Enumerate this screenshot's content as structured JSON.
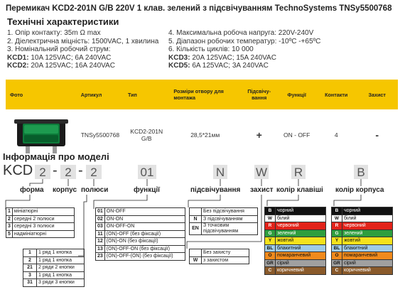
{
  "title": "Перемикач KCD2-201N G/B 220V 1 клав. зелений з підсвічуванням TechnoSystems TNSy5500768",
  "specs": {
    "heading": "Технічні характеристики",
    "left": [
      "1. Опір контакту: 35m Ω  max",
      "2. Діелектрична міцність:  1500VAC, 1 хвилина",
      "3. Номінальний робочий струм:"
    ],
    "left_ratings": [
      {
        "name": "KCD1:",
        "value": " 10A 125VAC; 6A 240VAC"
      },
      {
        "name": "KCD2:",
        "value": " 20A 125VAC; 16A 240VAC"
      }
    ],
    "right": [
      "4. Максимальна робоча напруга: 220V-240V",
      "5. Діапазон робочих температур: -10ºC -+65ºC",
      "6. Кількість циклів: 10 000"
    ],
    "right_ratings": [
      {
        "name": "KCD3:",
        "value": " 20A 125VAC; 15A 240VAC"
      },
      {
        "name": "KCD5:",
        "value": " 6A 125VAC; 3A 240VAC"
      }
    ]
  },
  "product_table": {
    "headers": [
      "Фото",
      "Артикул",
      "Тип",
      "Розміри отвору для монтажа",
      "Підсвічу-вання",
      "Функції",
      "Контакти",
      "Захист"
    ],
    "row": {
      "article": "TNSy5500768",
      "type_line1": "KCD2-201N",
      "type_line2": "G/B",
      "size": "28,5*21мм",
      "backlight": "+",
      "functions": "ON - OFF",
      "contacts": "4",
      "protection": "-"
    }
  },
  "model_info": {
    "heading": "Інформація про моделі",
    "code": {
      "prefix": "KCD",
      "p1": "2",
      "d1": "-",
      "p2": "2",
      "d2": "-",
      "p3": "2",
      "p4": "01",
      "p5": "N",
      "p6": "W",
      "p7": "R",
      "p8": "B"
    },
    "labels": {
      "form": "форма",
      "body": "корпус",
      "poles": "полюси",
      "functions": "функції",
      "backlight": "підсвічування",
      "protection": "захист",
      "key_color": "колір клавіші",
      "body_color": "колір корпуса"
    },
    "form_table": [
      {
        "k": "1",
        "v": "мініатюрні"
      },
      {
        "k": "2",
        "v": "середні 2 полюси"
      },
      {
        "k": "3",
        "v": "середні 3 полюси"
      },
      {
        "k": "5",
        "v": "надмініатюрні"
      }
    ],
    "function_table": [
      {
        "k": "01",
        "v": "ON-OFF"
      },
      {
        "k": "02",
        "v": "ON-ON"
      },
      {
        "k": "03",
        "v": "ON-OFF-ON"
      },
      {
        "k": "11",
        "v": "(ON)-OFF (без фіксації)"
      },
      {
        "k": "12",
        "v": "(ON)-ON (без фіксації)"
      },
      {
        "k": "13",
        "v": "(ON)-OFF-ON (без фіксації)"
      },
      {
        "k": "23",
        "v": "(ON)-OFF-(ON) (без фіксації)"
      }
    ],
    "poles_table": [
      {
        "k": "1",
        "v": "1 ряд 1 кнопка"
      },
      {
        "k": "2",
        "v": "1 ряд 1 кнопка"
      },
      {
        "k": "21",
        "v": "2 ряди 2 кнопки"
      },
      {
        "k": "3",
        "v": "1 ряд 1 кнопка"
      },
      {
        "k": "31",
        "v": "3 ряди 3 кнопки"
      }
    ],
    "backlight_table": [
      {
        "k": "",
        "v": "Без підсвічування"
      },
      {
        "k": "N",
        "v": "З підсвічуванням"
      },
      {
        "k": "EN",
        "v": "З точковим підсвічуванням"
      }
    ],
    "protection_table": [
      {
        "k": "",
        "v": "Без захисту"
      },
      {
        "k": "W",
        "v": "з захистом"
      }
    ],
    "colors": [
      {
        "k": "B",
        "v": "чорний",
        "hex": "#111111",
        "fg": "#ffffff"
      },
      {
        "k": "W",
        "v": "білий",
        "hex": "#ffffff",
        "fg": "#111111"
      },
      {
        "k": "R",
        "v": "червоний",
        "hex": "#e2231a",
        "fg": "#ffffff"
      },
      {
        "k": "G",
        "v": "зелений",
        "hex": "#2e9e3e",
        "fg": "#ffffff"
      },
      {
        "k": "Y",
        "v": "жовтий",
        "hex": "#f4e21c",
        "fg": "#111111"
      },
      {
        "k": "BL",
        "v": "блакитний",
        "hex": "#9ecbe8",
        "fg": "#111111"
      },
      {
        "k": "O",
        "v": "помаранчевий",
        "hex": "#f08a1c",
        "fg": "#111111"
      },
      {
        "k": "GR",
        "v": "сірий",
        "hex": "#a0a0a0",
        "fg": "#111111"
      },
      {
        "k": "C",
        "v": "коричневий",
        "hex": "#8a5a2b",
        "fg": "#ffffff"
      }
    ]
  }
}
